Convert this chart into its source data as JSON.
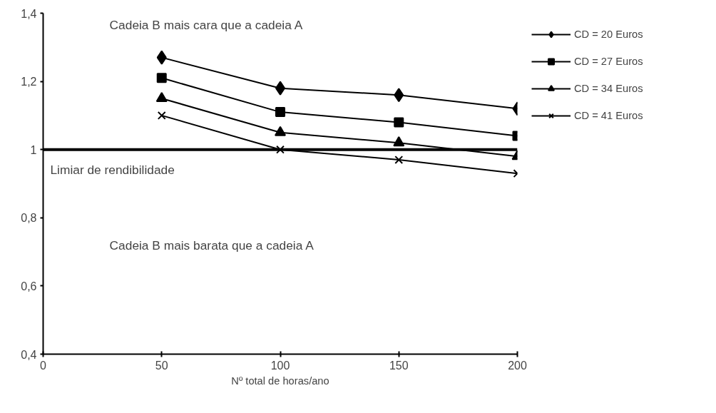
{
  "chart_data": {
    "type": "line",
    "xlabel": "Nº total de horas/ano",
    "x": [
      50,
      100,
      150,
      200
    ],
    "xlim": [
      0,
      200
    ],
    "xticks": [
      0,
      50,
      100,
      150,
      200
    ],
    "ylim": [
      0.4,
      1.4
    ],
    "yticks": [
      {
        "value": 0.4,
        "label": "0,4"
      },
      {
        "value": 0.6,
        "label": "0,6"
      },
      {
        "value": 0.8,
        "label": "0,8"
      },
      {
        "value": 1,
        "label": "1"
      },
      {
        "value": 1.2,
        "label": "1,2"
      },
      {
        "value": 1.4,
        "label": "1,4"
      }
    ],
    "series": [
      {
        "name": "CD = 20 Euros",
        "color": "#000000",
        "marker": "diamond",
        "values": [
          1.27,
          1.18,
          1.16,
          1.12
        ]
      },
      {
        "name": "CD = 27 Euros",
        "color": "#000000",
        "marker": "square",
        "values": [
          1.21,
          1.11,
          1.08,
          1.04
        ]
      },
      {
        "name": "CD = 34 Euros",
        "color": "#000000",
        "marker": "triangle",
        "values": [
          1.15,
          1.05,
          1.02,
          0.98
        ]
      },
      {
        "name": "CD = 41 Euros",
        "color": "#000000",
        "marker": "cross",
        "values": [
          1.1,
          1.0,
          0.97,
          0.93
        ]
      }
    ],
    "ref_lines": [
      {
        "axis": "y",
        "value": 1,
        "label": "Limiar de rendibilidade",
        "color": "#000000"
      }
    ],
    "annotations": [
      "Cadeia B mais cara que a cadeia A",
      "Cadeia B mais barata que a cadeia A"
    ],
    "grid": false,
    "legend": "top right",
    "line_style": "solid"
  }
}
